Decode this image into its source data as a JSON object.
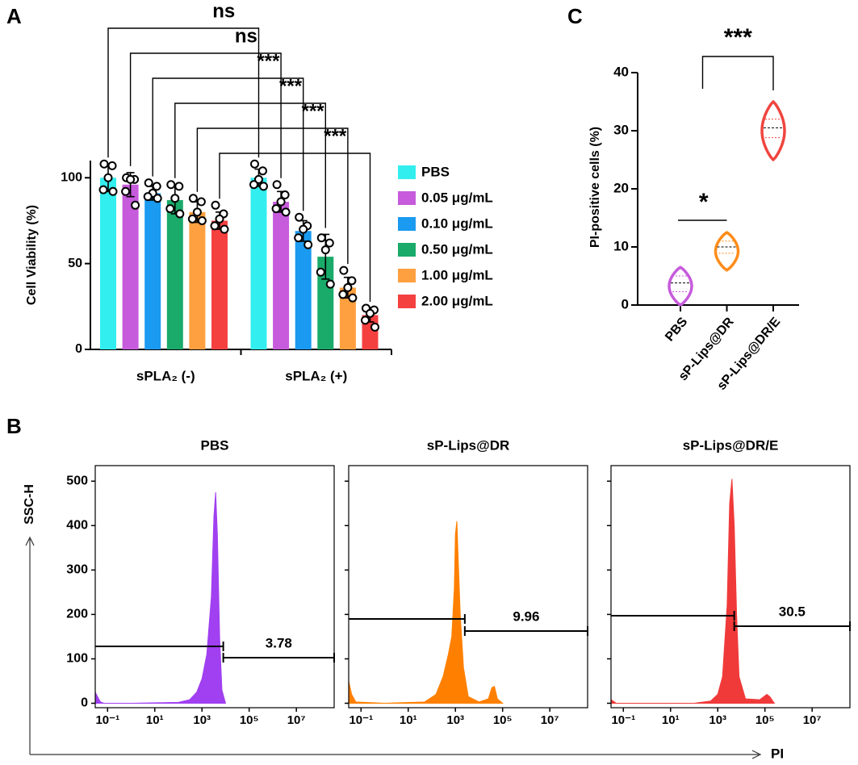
{
  "chart_data": [
    {
      "type": "bar",
      "panel": "A",
      "y_label": "Cell Viability (%)",
      "categories": [
        "sPLA₂ (-)",
        "sPLA₂ (+)"
      ],
      "ylim": [
        0,
        110
      ],
      "yticks": [
        0,
        50,
        100
      ],
      "annotations": [
        "ns",
        "ns",
        "***",
        "***",
        "***",
        "***"
      ],
      "series": [
        {
          "name": "PBS",
          "color": "#33eeee",
          "values": [
            100,
            100
          ],
          "errors": [
            8,
            5
          ],
          "points": [
            [
              108,
              107,
              100,
              93,
              92
            ],
            [
              108,
              104,
              99,
              96,
              95
            ]
          ]
        },
        {
          "name": "0.05 μg/mL",
          "color": "#c65bdb",
          "values": [
            96,
            86
          ],
          "errors": [
            7,
            6
          ],
          "points": [
            [
              100,
              99,
              99,
              92,
              84
            ],
            [
              96,
              90,
              86,
              82,
              80
            ]
          ]
        },
        {
          "name": "0.10 μg/mL",
          "color": "#1a9af0",
          "values": [
            91,
            69
          ],
          "errors": [
            4,
            6
          ],
          "points": [
            [
              97,
              95,
              91,
              89,
              88
            ],
            [
              77,
              72,
              70,
              65,
              61
            ]
          ]
        },
        {
          "name": "0.50 μg/mL",
          "color": "#1aaa6a",
          "values": [
            87,
            54
          ],
          "errors": [
            8,
            13
          ],
          "points": [
            [
              96,
              95,
              88,
              82,
              79
            ],
            [
              65,
              62,
              58,
              45,
              38
            ]
          ]
        },
        {
          "name": "1.00 μg/mL",
          "color": "#ffa040",
          "values": [
            80,
            36
          ],
          "errors": [
            6,
            6
          ],
          "points": [
            [
              88,
              86,
              80,
              76,
              75
            ],
            [
              46,
              40,
              36,
              32,
              30
            ]
          ]
        },
        {
          "name": "2.00 μg/mL",
          "color": "#f54040",
          "values": [
            75,
            20
          ],
          "errors": [
            5,
            4
          ],
          "points": [
            [
              84,
              79,
              76,
              72,
              70
            ],
            [
              24,
              23,
              21,
              17,
              13
            ]
          ]
        }
      ]
    },
    {
      "type": "violin",
      "panel": "C",
      "y_label": "PI-positive cells  (%)",
      "categories": [
        "PBS",
        "sP-Lips@DR",
        "sP-Lips@DR/E"
      ],
      "colors": [
        "#c65bdb",
        "#ff8c1a",
        "#f0453f"
      ],
      "min": [
        0,
        6,
        25
      ],
      "q1": [
        2.3,
        8.9,
        28.8
      ],
      "median": [
        3.8,
        10,
        30.5
      ],
      "q3": [
        5,
        11,
        32
      ],
      "max": [
        6.5,
        12.5,
        35
      ],
      "ylim": [
        0,
        40
      ],
      "yticks": [
        0,
        10,
        20,
        30,
        40
      ],
      "annotations": [
        "*",
        "***"
      ]
    },
    {
      "type": "flow",
      "panel": "B",
      "x_label": "PI",
      "y_label": "SSC-H",
      "log_x": true,
      "xlim": [
        0.03,
        400000000
      ],
      "xticks": [
        {
          "value": 0.1,
          "label": "10⁻¹"
        },
        {
          "value": 10,
          "label": "10¹"
        },
        {
          "value": 1000,
          "label": "10³"
        },
        {
          "value": 100000,
          "label": "10⁵"
        },
        {
          "value": 10000000,
          "label": "10⁷"
        }
      ],
      "ylim": [
        -10,
        535
      ],
      "yticks": [
        0,
        100,
        200,
        300,
        400,
        500
      ],
      "panels": [
        {
          "title": "PBS",
          "color": "#a040f0",
          "gate_x": 8000,
          "gate_percent": 3.78,
          "x": [
            0.03,
            0.04,
            0.05,
            0.07,
            1,
            100,
            300,
            600,
            1000,
            1600,
            2500,
            3200,
            3800,
            4500,
            5600,
            7000,
            10000
          ],
          "values": [
            25,
            12,
            3,
            0,
            0,
            2,
            8,
            25,
            55,
            110,
            240,
            420,
            475,
            380,
            150,
            30,
            0
          ]
        },
        {
          "title": "sP-Lips@DR",
          "color": "#ff8000",
          "gate_x": 2500,
          "gate_percent": 9.96,
          "x": [
            0.03,
            0.04,
            0.06,
            1,
            50,
            150,
            300,
            500,
            700,
            900,
            1000,
            1150,
            1300,
            1600,
            2200,
            3500,
            10000,
            25000,
            35000,
            45000,
            60000,
            100000
          ],
          "values": [
            50,
            20,
            3,
            0,
            3,
            20,
            60,
            110,
            150,
            260,
            380,
            410,
            330,
            200,
            80,
            15,
            3,
            10,
            35,
            38,
            10,
            0
          ]
        },
        {
          "title": "sP-Lips@DR/E",
          "color": "#f03a3a",
          "gate_x": 5000,
          "gate_percent": 30.5,
          "x": [
            0.03,
            0.05,
            100,
            500,
            1000,
            1600,
            2500,
            3200,
            4000,
            5000,
            6300,
            8000,
            15000,
            60000,
            120000,
            160000,
            250000
          ],
          "values": [
            8,
            0,
            0,
            5,
            20,
            60,
            220,
            450,
            505,
            400,
            200,
            60,
            10,
            8,
            20,
            15,
            0
          ]
        }
      ]
    }
  ]
}
